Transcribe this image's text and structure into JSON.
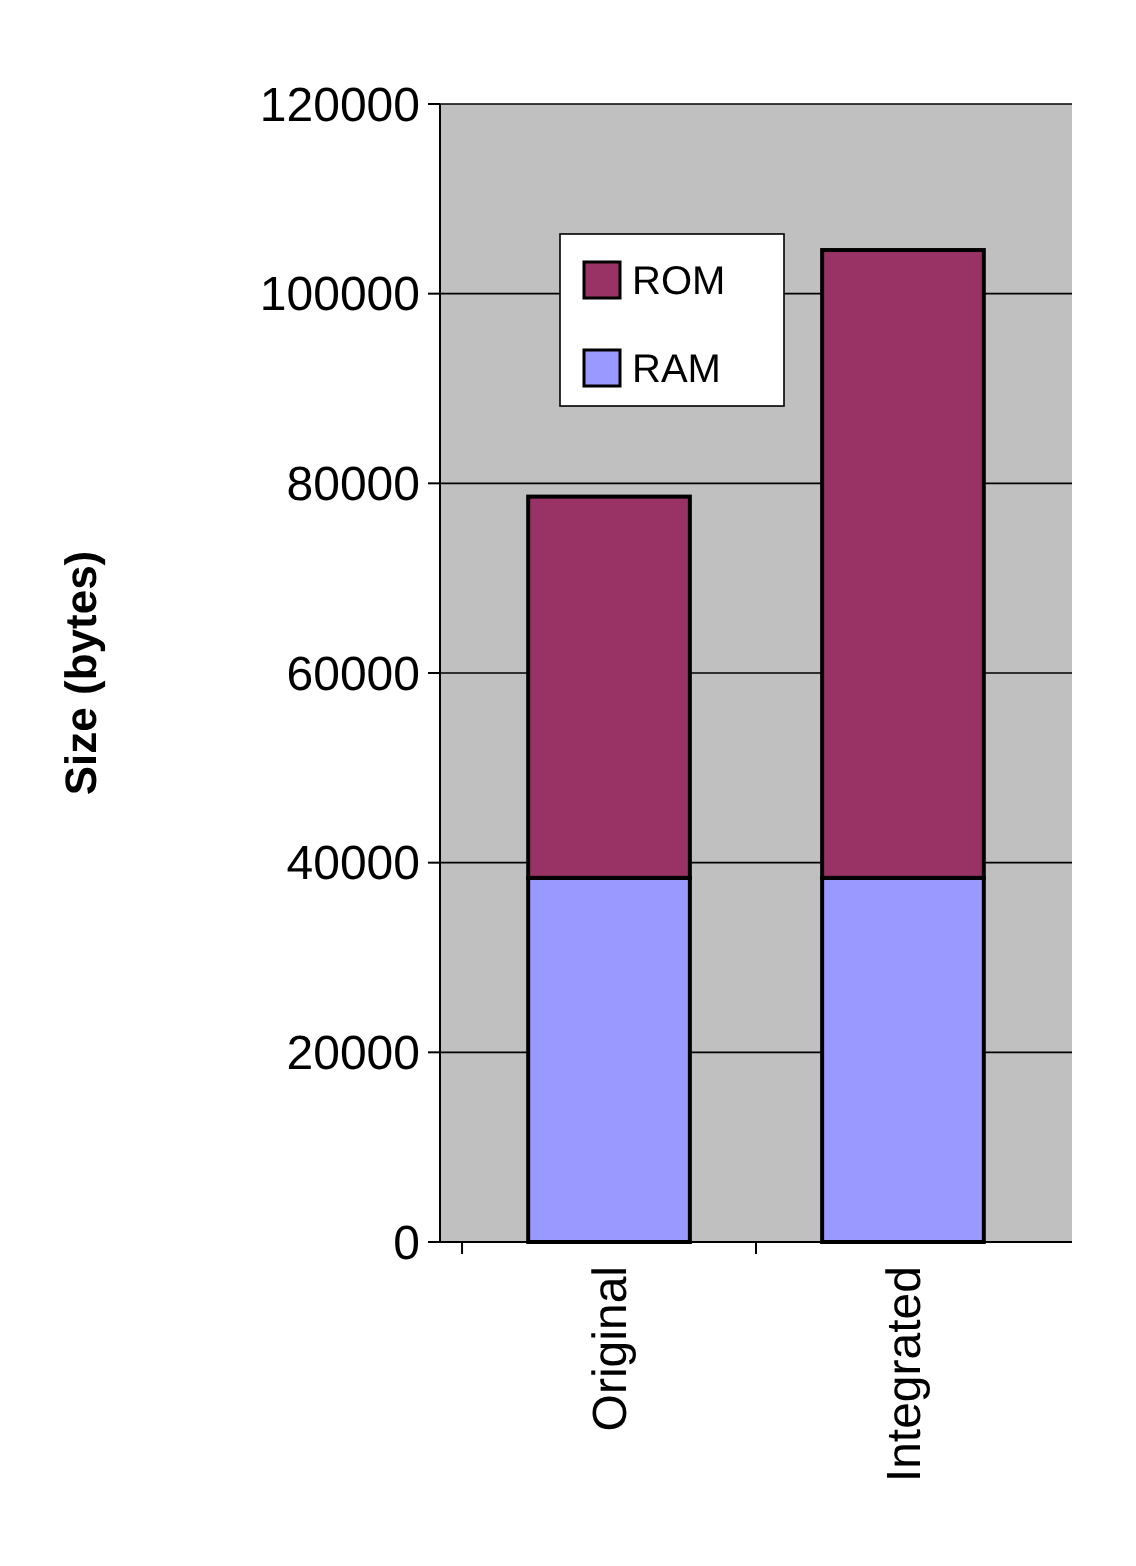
{
  "chart_data": {
    "type": "bar",
    "stacked": true,
    "ylabel": "Size (bytes)",
    "categories": [
      "Original",
      "Integrated"
    ],
    "series": [
      {
        "name": "RAM",
        "color": "#9999ff",
        "values": [
          38400,
          38400
        ]
      },
      {
        "name": "ROM",
        "color": "#993366",
        "values": [
          40200,
          66200
        ]
      }
    ],
    "ylim": [
      0,
      120000
    ],
    "yticks": [
      0,
      20000,
      40000,
      60000,
      80000,
      100000,
      120000
    ],
    "grid": "y",
    "legend": "top left"
  }
}
